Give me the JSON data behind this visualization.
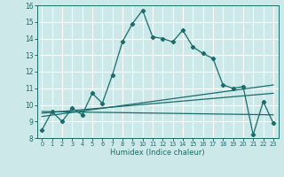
{
  "title": "",
  "xlabel": "Humidex (Indice chaleur)",
  "bg_color": "#cce8e8",
  "grid_color": "#ffffff",
  "line_color": "#1a6b6b",
  "xlim": [
    -0.5,
    23.5
  ],
  "ylim": [
    8,
    16
  ],
  "xticks": [
    0,
    1,
    2,
    3,
    4,
    5,
    6,
    7,
    8,
    9,
    10,
    11,
    12,
    13,
    14,
    15,
    16,
    17,
    18,
    19,
    20,
    21,
    22,
    23
  ],
  "yticks": [
    8,
    9,
    10,
    11,
    12,
    13,
    14,
    15,
    16
  ],
  "series1_x": [
    0,
    1,
    2,
    3,
    4,
    5,
    6,
    7,
    8,
    9,
    10,
    11,
    12,
    13,
    14,
    15,
    16,
    17,
    18,
    19,
    20,
    21,
    22,
    23
  ],
  "series1_y": [
    8.5,
    9.6,
    9.0,
    9.8,
    9.4,
    10.7,
    10.1,
    11.8,
    13.8,
    14.9,
    15.7,
    14.1,
    14.0,
    13.8,
    14.5,
    13.5,
    13.1,
    12.8,
    11.2,
    11.0,
    11.1,
    8.2,
    10.2,
    8.9
  ],
  "series2_x": [
    0,
    23
  ],
  "series2_y": [
    9.3,
    11.2
  ],
  "series3_x": [
    0,
    23
  ],
  "series3_y": [
    9.5,
    10.7
  ],
  "series4_x": [
    0,
    23
  ],
  "series4_y": [
    9.6,
    9.4
  ]
}
